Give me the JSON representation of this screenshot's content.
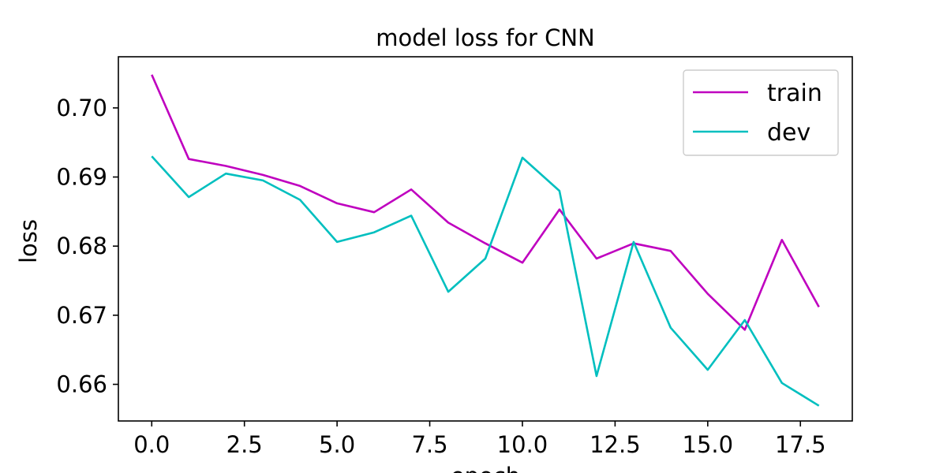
{
  "chart_data": {
    "type": "line",
    "title": "model loss for CNN",
    "xlabel": "epoch",
    "ylabel": "loss",
    "x": [
      0,
      1,
      2,
      3,
      4,
      5,
      6,
      7,
      8,
      9,
      10,
      11,
      12,
      13,
      14,
      15,
      16,
      17,
      18
    ],
    "xlim": [
      -0.9,
      18.9
    ],
    "ylim": [
      0.6547,
      0.7074
    ],
    "xticks": [
      0.0,
      2.5,
      5.0,
      7.5,
      10.0,
      12.5,
      15.0,
      17.5
    ],
    "xtick_labels": [
      "0.0",
      "2.5",
      "5.0",
      "7.5",
      "10.0",
      "12.5",
      "15.0",
      "17.5"
    ],
    "yticks": [
      0.66,
      0.67,
      0.68,
      0.69,
      0.7
    ],
    "ytick_labels": [
      "0.66",
      "0.67",
      "0.68",
      "0.69",
      "0.70"
    ],
    "grid": false,
    "legend_position": "top-right",
    "series": [
      {
        "name": "train",
        "color": "#bf00bf",
        "values": [
          0.7048,
          0.6926,
          0.6916,
          0.6903,
          0.6887,
          0.6862,
          0.6849,
          0.6882,
          0.6834,
          0.6804,
          0.6776,
          0.6853,
          0.6782,
          0.6804,
          0.6793,
          0.6731,
          0.6679,
          0.6809,
          0.6712
        ]
      },
      {
        "name": "dev",
        "color": "#00bfbf",
        "values": [
          0.693,
          0.6871,
          0.6905,
          0.6895,
          0.6867,
          0.6806,
          0.682,
          0.6844,
          0.6734,
          0.6782,
          0.6928,
          0.688,
          0.6612,
          0.6806,
          0.6682,
          0.6621,
          0.6693,
          0.6602,
          0.6569
        ]
      }
    ]
  }
}
